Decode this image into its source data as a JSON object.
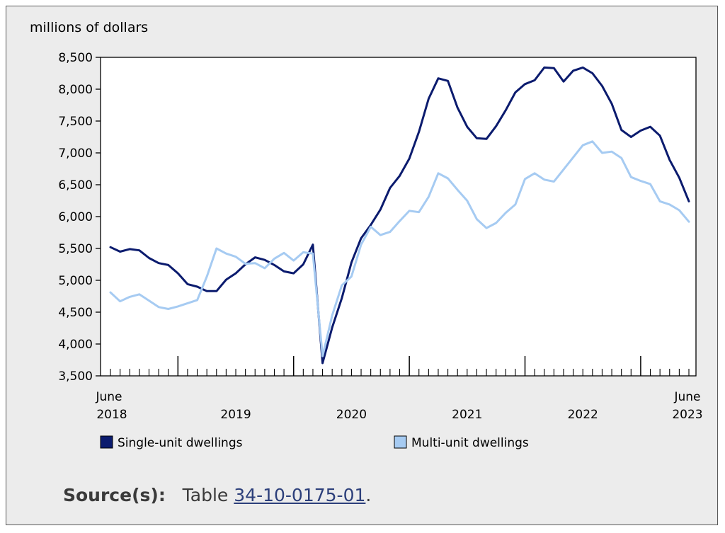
{
  "chart_data": {
    "type": "line",
    "ylabel": "millions of dollars",
    "ylim": [
      3500,
      8500
    ],
    "yticks": [
      3500,
      4000,
      4500,
      5000,
      5500,
      6000,
      6500,
      7000,
      7500,
      8000,
      8500
    ],
    "ytick_labels": [
      "3,500",
      "4,000",
      "4,500",
      "5,000",
      "5,500",
      "6,000",
      "6,500",
      "7,000",
      "7,500",
      "8,000",
      "8,500"
    ],
    "x_start_label": [
      "June",
      "2018"
    ],
    "x_end_label": [
      "June",
      "2023"
    ],
    "year_labels": [
      "2019",
      "2020",
      "2021",
      "2022"
    ],
    "grid": false,
    "legend_position": "bottom",
    "x": [
      "2018-06",
      "2018-07",
      "2018-08",
      "2018-09",
      "2018-10",
      "2018-11",
      "2018-12",
      "2019-01",
      "2019-02",
      "2019-03",
      "2019-04",
      "2019-05",
      "2019-06",
      "2019-07",
      "2019-08",
      "2019-09",
      "2019-10",
      "2019-11",
      "2019-12",
      "2020-01",
      "2020-02",
      "2020-03",
      "2020-04",
      "2020-05",
      "2020-06",
      "2020-07",
      "2020-08",
      "2020-09",
      "2020-10",
      "2020-11",
      "2020-12",
      "2021-01",
      "2021-02",
      "2021-03",
      "2021-04",
      "2021-05",
      "2021-06",
      "2021-07",
      "2021-08",
      "2021-09",
      "2021-10",
      "2021-11",
      "2021-12",
      "2022-01",
      "2022-02",
      "2022-03",
      "2022-04",
      "2022-05",
      "2022-06",
      "2022-07",
      "2022-08",
      "2022-09",
      "2022-10",
      "2022-11",
      "2022-12",
      "2023-01",
      "2023-02",
      "2023-03",
      "2023-04",
      "2023-05",
      "2023-06"
    ],
    "series": [
      {
        "name": "Single-unit dwellings",
        "color": "#0b1b6e",
        "values": [
          5520,
          5450,
          5490,
          5470,
          5350,
          5270,
          5240,
          5110,
          4940,
          4900,
          4830,
          4830,
          5010,
          5110,
          5250,
          5360,
          5320,
          5240,
          5140,
          5110,
          5250,
          5560,
          3700,
          4260,
          4720,
          5280,
          5660,
          5870,
          6110,
          6450,
          6640,
          6910,
          7330,
          7850,
          8170,
          8130,
          7710,
          7410,
          7230,
          7220,
          7420,
          7670,
          7950,
          8080,
          8140,
          8340,
          8330,
          8120,
          8290,
          8340,
          8250,
          8050,
          7770,
          7360,
          7250,
          7350,
          7410,
          7270,
          6890,
          6610,
          6240
        ]
      },
      {
        "name": "Multi-unit dwellings",
        "color": "#a6cbf2",
        "values": [
          4810,
          4670,
          4740,
          4780,
          4680,
          4580,
          4550,
          4590,
          4640,
          4690,
          5060,
          5500,
          5420,
          5370,
          5260,
          5270,
          5190,
          5340,
          5430,
          5310,
          5440,
          5420,
          3810,
          4450,
          4920,
          5060,
          5560,
          5840,
          5710,
          5760,
          5930,
          6090,
          6070,
          6310,
          6680,
          6600,
          6420,
          6250,
          5960,
          5820,
          5900,
          6060,
          6190,
          6590,
          6680,
          6580,
          6550,
          6740,
          6930,
          7120,
          7180,
          7000,
          7020,
          6920,
          6620,
          6560,
          6510,
          6240,
          6190,
          6100,
          5920
        ]
      }
    ]
  },
  "source": {
    "label": "Source(s):",
    "prefix": "Table",
    "link_text": "34-10-0175-01",
    "suffix": "."
  }
}
